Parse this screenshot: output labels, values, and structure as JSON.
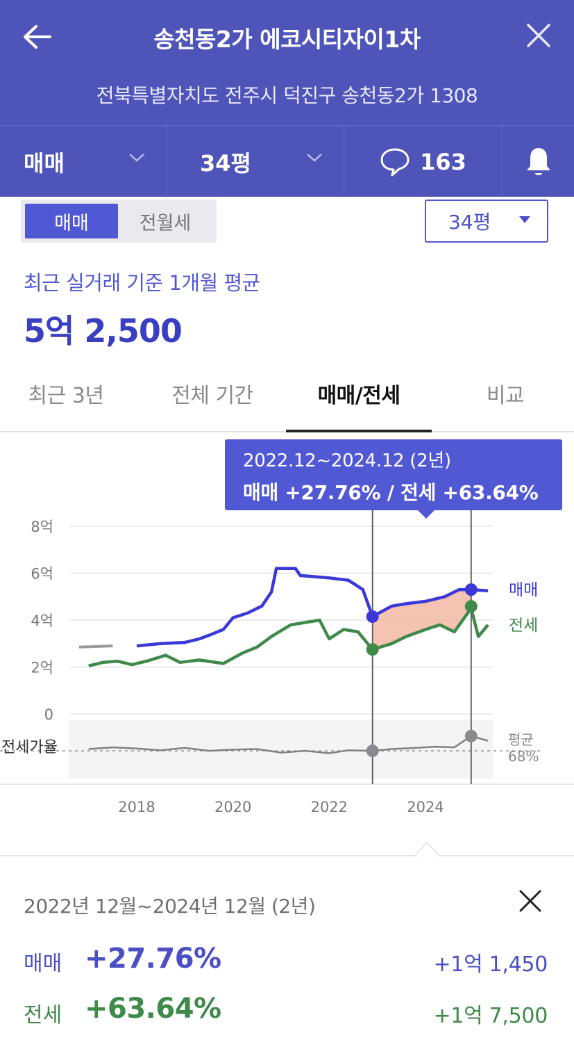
{
  "header": {
    "title": "송천동2가 에코시티자이1차",
    "address": "전북특별자치도 전주시 덕진구 송천동2가 1308"
  },
  "selectors": {
    "trade_type": "매매",
    "size": "34평",
    "comment_count": "163"
  },
  "sub_toggle": {
    "active": "매매",
    "inactive": "전월세"
  },
  "size_dropdown": "34평",
  "summary": {
    "caption": "최근 실거래 기준 1개월 평균",
    "value": "5억 2,500"
  },
  "tabs": [
    "최근 3년",
    "전체 기간",
    "매매/전세",
    "비교"
  ],
  "tooltip": {
    "line1": "2022.12~2024.12 (2년)",
    "line2": "매매 +27.76%  /  전세 +63.64%"
  },
  "colors": {
    "primary": "#4f55b8",
    "sale_line": "#3a38d8",
    "jeonse_line": "#3f8a4a",
    "highlight_fill": "#f3b9a4",
    "ratio_line": "#808080"
  },
  "chart_data": {
    "type": "line",
    "x_ticks": [
      "2018",
      "2020",
      "2022",
      "2024"
    ],
    "y_ticks": [
      "8억",
      "6억",
      "4억",
      "2억",
      "0"
    ],
    "ylim": [
      0,
      8
    ],
    "unit": "억",
    "series": [
      {
        "name": "매매",
        "points": [
          [
            2016.8,
            2.85
          ],
          [
            2017.5,
            2.9
          ],
          [
            2018.0,
            2.9
          ],
          [
            2018.5,
            3.0
          ],
          [
            2019.0,
            3.05
          ],
          [
            2019.3,
            3.2
          ],
          [
            2019.5,
            3.35
          ],
          [
            2019.8,
            3.6
          ],
          [
            2020.0,
            4.1
          ],
          [
            2020.3,
            4.3
          ],
          [
            2020.6,
            4.6
          ],
          [
            2020.8,
            5.2
          ],
          [
            2020.9,
            6.2
          ],
          [
            2021.3,
            6.2
          ],
          [
            2021.4,
            5.9
          ],
          [
            2022.0,
            5.8
          ],
          [
            2022.4,
            5.7
          ],
          [
            2022.7,
            5.3
          ],
          [
            2022.9,
            4.15
          ],
          [
            2023.3,
            4.6
          ],
          [
            2023.6,
            4.7
          ],
          [
            2024.0,
            4.8
          ],
          [
            2024.4,
            5.0
          ],
          [
            2024.7,
            5.3
          ],
          [
            2024.95,
            5.3
          ],
          [
            2025.3,
            5.25
          ]
        ]
      },
      {
        "name": "전세",
        "points": [
          [
            2017.0,
            2.05
          ],
          [
            2017.3,
            2.2
          ],
          [
            2017.6,
            2.25
          ],
          [
            2017.9,
            2.1
          ],
          [
            2018.2,
            2.25
          ],
          [
            2018.6,
            2.5
          ],
          [
            2018.9,
            2.2
          ],
          [
            2019.3,
            2.3
          ],
          [
            2019.8,
            2.15
          ],
          [
            2020.2,
            2.6
          ],
          [
            2020.5,
            2.85
          ],
          [
            2020.8,
            3.3
          ],
          [
            2021.2,
            3.8
          ],
          [
            2021.8,
            4.0
          ],
          [
            2022.0,
            3.2
          ],
          [
            2022.3,
            3.6
          ],
          [
            2022.6,
            3.5
          ],
          [
            2022.9,
            2.75
          ],
          [
            2023.3,
            3.0
          ],
          [
            2023.6,
            3.3
          ],
          [
            2024.0,
            3.6
          ],
          [
            2024.3,
            3.8
          ],
          [
            2024.6,
            3.5
          ],
          [
            2024.95,
            4.5
          ],
          [
            2025.1,
            3.3
          ],
          [
            2025.3,
            3.8
          ]
        ]
      },
      {
        "name": "전세가율",
        "points": [
          [
            2017.0,
            0.5
          ],
          [
            2017.5,
            0.53
          ],
          [
            2018.0,
            0.51
          ],
          [
            2018.5,
            0.48
          ],
          [
            2019.0,
            0.52
          ],
          [
            2019.5,
            0.47
          ],
          [
            2020.0,
            0.49
          ],
          [
            2020.5,
            0.5
          ],
          [
            2021.0,
            0.44
          ],
          [
            2021.5,
            0.47
          ],
          [
            2022.0,
            0.43
          ],
          [
            2022.4,
            0.48
          ],
          [
            2022.9,
            0.47
          ],
          [
            2023.3,
            0.5
          ],
          [
            2023.8,
            0.52
          ],
          [
            2024.2,
            0.54
          ],
          [
            2024.6,
            0.53
          ],
          [
            2024.95,
            0.72
          ],
          [
            2025.3,
            0.64
          ]
        ]
      }
    ],
    "ratio_labels": [
      "전세가율",
      "평균",
      "68%"
    ],
    "highlight_range": [
      "2022.12",
      "2024.12"
    ],
    "series_labels": [
      "매매",
      "전세"
    ]
  },
  "panel": {
    "range": "2022년 12월~2024년 12월 (2년)",
    "rows": [
      {
        "label": "매매",
        "pct": "+27.76%",
        "amount": "+1억 1,450"
      },
      {
        "label": "전세",
        "pct": "+63.64%",
        "amount": "+1억 7,500"
      }
    ]
  }
}
